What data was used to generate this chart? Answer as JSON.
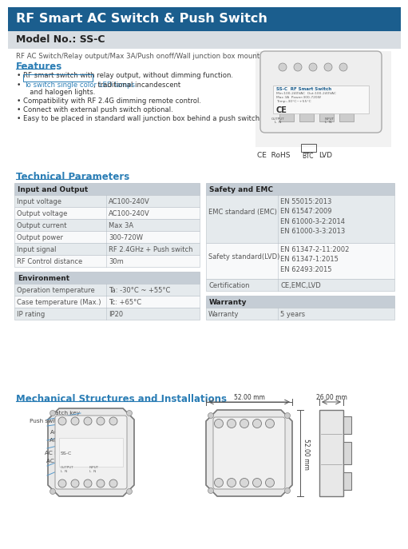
{
  "title": "RF Smart AC Switch & Push Switch",
  "title_bg": "#1b5e8e",
  "title_color": "#ffffff",
  "model_bg": "#d8dde2",
  "model_text": "Model No.: SS-C",
  "subtitle": "RF AC Switch/Relay output/Max 3A/Push on​off/Wall junction box mounting",
  "features_title": "Features",
  "features_color": "#2a7db5",
  "feat1": "RF smart switch with relay output, without dimming function.",
  "feat2a": "To switch single color LED lamps",
  "feat2b": ", traditional incandescent",
  "feat2c": "   and halogen lights.",
  "feat3": "Compatibility with RF 2.4G dimming remote control.",
  "feat4": "Connect with external push switch optional.",
  "feat5": "Easy to be placed in standard wall junction box behind a push switch.",
  "tech_title": "Technical Parameters",
  "tech_color": "#2a7db5",
  "t1_header": "Input and Output",
  "t1_rows": [
    [
      "Input voltage",
      "AC100-240V"
    ],
    [
      "Output voltage",
      "AC100-240V"
    ],
    [
      "Output current",
      "Max 3A"
    ],
    [
      "Output power",
      "300-720W"
    ],
    [
      "Input signal",
      "RF 2.4GHz + Push switch"
    ],
    [
      "RF Control distance",
      "30m"
    ]
  ],
  "t2_header": "Environment",
  "t2_rows": [
    [
      "Operation temperature",
      "Ta: -30°C ~ +55°C"
    ],
    [
      "Case temperature (Max.)",
      "Tc: +65°C"
    ],
    [
      "IP rating",
      "IP20"
    ]
  ],
  "t3_header": "Safety and EMC",
  "emc_label": "EMC standard (EMC)",
  "emc_vals": "EN 55015:2013\nEN 61547:2009\nEN 61000-3-2:2014\nEN 61000-3-3:2013",
  "lvd_label": "Safety standard(LVD)",
  "lvd_vals": "EN 61347-2-11:2002\nEN 61347-1:2015\nEN 62493:2015",
  "cert_label": "Certification",
  "cert_val": "CE,EMC,LVD",
  "t4_header": "Warranty",
  "war_label": "Warranty",
  "war_val": "5 years",
  "mech_title": "Mechanical Structures and Installations",
  "mech_color": "#2a7db5",
  "labels_left": [
    "Match key",
    "Push switch input",
    "AC L input",
    "AC N input",
    "AC N output",
    "AC L output"
  ],
  "dim_w": "52.00 mm",
  "dim_h": "52.00 mm",
  "dim_d": "26.00 mm",
  "hdr_bg": "#c5cdd5",
  "row_alt": "#e5eaed",
  "row_wht": "#f8f9fa",
  "border": "#b8c0c8",
  "txt_dark": "#333333",
  "txt_mid": "#555555",
  "txt_light": "#666666"
}
